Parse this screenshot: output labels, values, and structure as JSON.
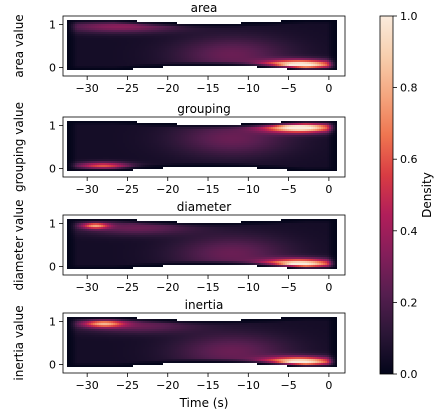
{
  "chart_data": {
    "type": "heatmap",
    "subtype": "kde-density",
    "xlabel": "Time (s)",
    "x_range": [
      -33,
      2
    ],
    "x_ticks": [
      -30,
      -25,
      -20,
      -15,
      -10,
      -5,
      0
    ],
    "y_range": [
      -0.2,
      1.2
    ],
    "y_ticks": [
      0,
      1
    ],
    "colormap": "rocket",
    "colorbar": {
      "label": "Density",
      "range": [
        0.0,
        1.0
      ],
      "ticks": [
        "0.0",
        "0.2",
        "0.4",
        "0.6",
        "0.8",
        "1.0"
      ],
      "stops": [
        "#03051a",
        "#2a1636",
        "#551e4f",
        "#841e5a",
        "#b11e5a",
        "#d93c43",
        "#ef7550",
        "#f4a67f",
        "#f7cfae",
        "#faebdd"
      ]
    },
    "panels": [
      {
        "title": "area",
        "ylabel": "area value",
        "hotspots": [
          {
            "x": -3.5,
            "y": 0.06,
            "sx": 3.0,
            "sy": 0.08,
            "w": 1.0
          },
          {
            "x": -26,
            "y": 0.95,
            "sx": 5.0,
            "sy": 0.1,
            "w": 0.3
          },
          {
            "x": -12,
            "y": 0.3,
            "sx": 5.0,
            "sy": 0.3,
            "w": 0.22
          }
        ]
      },
      {
        "title": "grouping",
        "ylabel": "grouping value",
        "hotspots": [
          {
            "x": -3.5,
            "y": 0.95,
            "sx": 3.0,
            "sy": 0.08,
            "w": 1.0
          },
          {
            "x": -28,
            "y": 0.06,
            "sx": 2.3,
            "sy": 0.06,
            "w": 0.55
          },
          {
            "x": -12,
            "y": 0.7,
            "sx": 5.0,
            "sy": 0.3,
            "w": 0.22
          }
        ]
      },
      {
        "title": "diameter",
        "ylabel": "diameter value",
        "hotspots": [
          {
            "x": -3.5,
            "y": 0.06,
            "sx": 3.0,
            "sy": 0.08,
            "w": 0.95
          },
          {
            "x": -29,
            "y": 0.95,
            "sx": 1.2,
            "sy": 0.05,
            "w": 0.6
          },
          {
            "x": -24,
            "y": 0.9,
            "sx": 5.0,
            "sy": 0.12,
            "w": 0.22
          },
          {
            "x": -12,
            "y": 0.3,
            "sx": 5.0,
            "sy": 0.3,
            "w": 0.22
          }
        ]
      },
      {
        "title": "inertia",
        "ylabel": "inertia value",
        "hotspots": [
          {
            "x": -3.5,
            "y": 0.06,
            "sx": 3.0,
            "sy": 0.08,
            "w": 0.95
          },
          {
            "x": -28,
            "y": 0.95,
            "sx": 1.8,
            "sy": 0.06,
            "w": 0.62
          },
          {
            "x": -24,
            "y": 0.9,
            "sx": 5.0,
            "sy": 0.12,
            "w": 0.22
          },
          {
            "x": -12,
            "y": 0.3,
            "sx": 5.0,
            "sy": 0.3,
            "w": 0.22
          }
        ]
      }
    ]
  }
}
